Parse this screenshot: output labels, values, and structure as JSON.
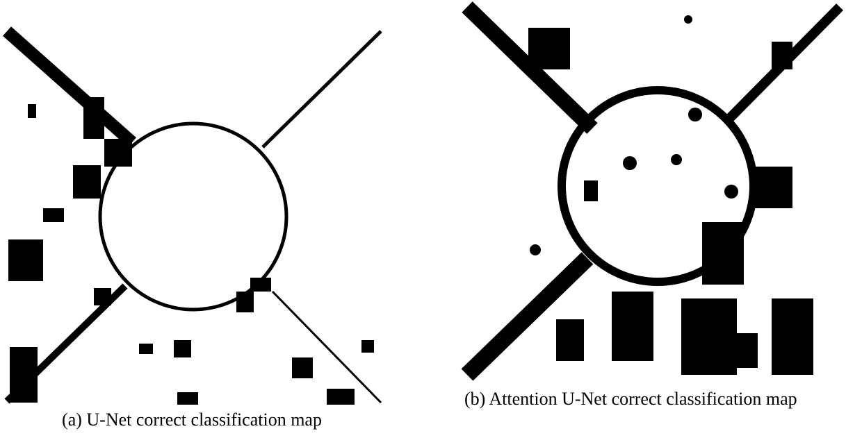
{
  "figures": [
    {
      "caption": "(a) U-Net correct classification map"
    },
    {
      "caption": "(b) Attention U-Net correct classification map"
    }
  ]
}
